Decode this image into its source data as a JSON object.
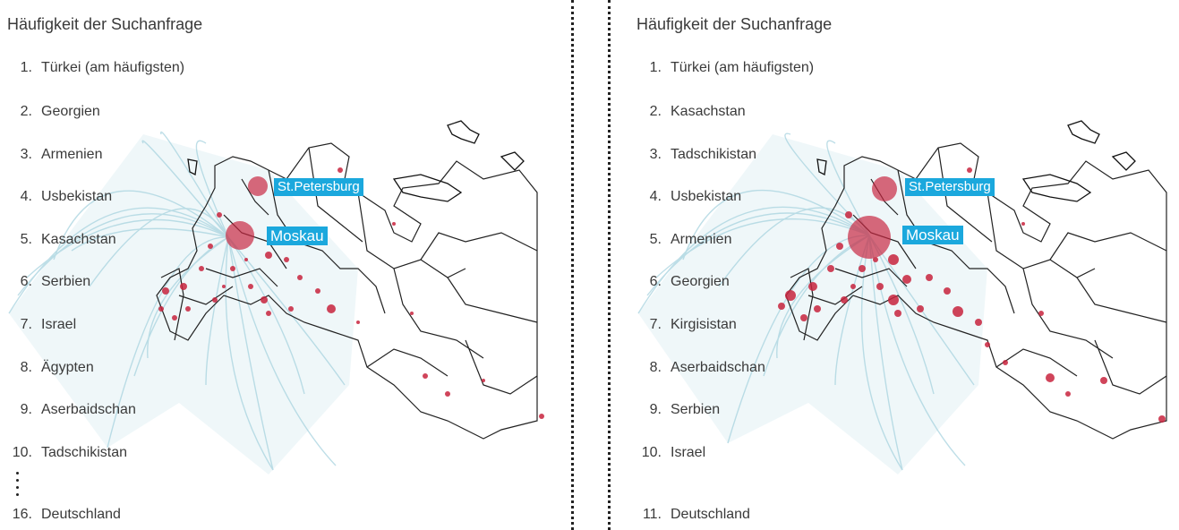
{
  "panels": [
    {
      "title": "Häufigkeit der Suchanfrage",
      "ranks": [
        {
          "num": "1.",
          "name": "Türkei (am häufigsten)"
        },
        {
          "num": "2.",
          "name": "Georgien"
        },
        {
          "num": "3.",
          "name": "Armenien"
        },
        {
          "num": "4.",
          "name": "Usbekistan"
        },
        {
          "num": "5.",
          "name": "Kasachstan"
        },
        {
          "num": "6.",
          "name": "Serbien"
        },
        {
          "num": "7.",
          "name": "Israel"
        },
        {
          "num": "8.",
          "name": "Ägypten"
        },
        {
          "num": "9.",
          "name": "Aserbaidschan"
        },
        {
          "num": "10.",
          "name": "Tadschikistan"
        },
        {
          "num": "16.",
          "name": "Deutschland"
        }
      ],
      "cities": {
        "stpetersburg": "St.Petersburg",
        "moskau": "Moskau"
      }
    },
    {
      "title": "Häufigkeit der Suchanfrage",
      "ranks": [
        {
          "num": "1.",
          "name": "Türkei (am häufigsten)"
        },
        {
          "num": "2.",
          "name": "Kasachstan"
        },
        {
          "num": "3.",
          "name": "Tadschikistan"
        },
        {
          "num": "4.",
          "name": "Usbekistan"
        },
        {
          "num": "5.",
          "name": "Armenien"
        },
        {
          "num": "6.",
          "name": "Georgien"
        },
        {
          "num": "7.",
          "name": "Kirgisistan"
        },
        {
          "num": "8.",
          "name": "Aserbaidschan"
        },
        {
          "num": "9.",
          "name": "Serbien"
        },
        {
          "num": "10.",
          "name": "Israel"
        },
        {
          "num": "11.",
          "name": "Deutschland"
        }
      ],
      "cities": {
        "stpetersburg": "St.Petersburg",
        "moskau": "Moskau"
      }
    }
  ],
  "colors": {
    "flow_lines": "#a9d4e0",
    "city_bubbles": "#c8243e",
    "label_bg": "#1ba8dd",
    "borders": "#222222"
  }
}
